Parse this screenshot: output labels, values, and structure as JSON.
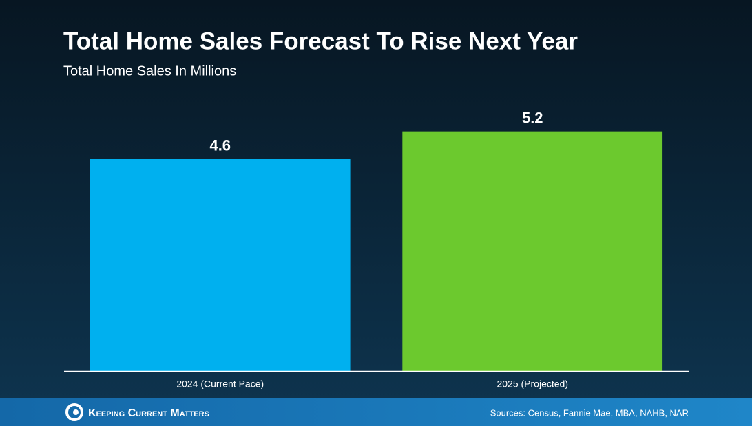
{
  "chart_data": {
    "type": "bar",
    "title": "Total Home Sales Forecast To Rise Next Year",
    "subtitle": "Total Home Sales In Millions",
    "categories": [
      "2024 (Current Pace)",
      "2025 (Projected)"
    ],
    "values": [
      4.6,
      5.2
    ],
    "colors": [
      "#00b0ef",
      "#6cc92e"
    ]
  },
  "footer": {
    "brand": "Keeping Current Matters",
    "sources": "Sources: Census, Fannie Mae, MBA, NAHB, NAR"
  }
}
